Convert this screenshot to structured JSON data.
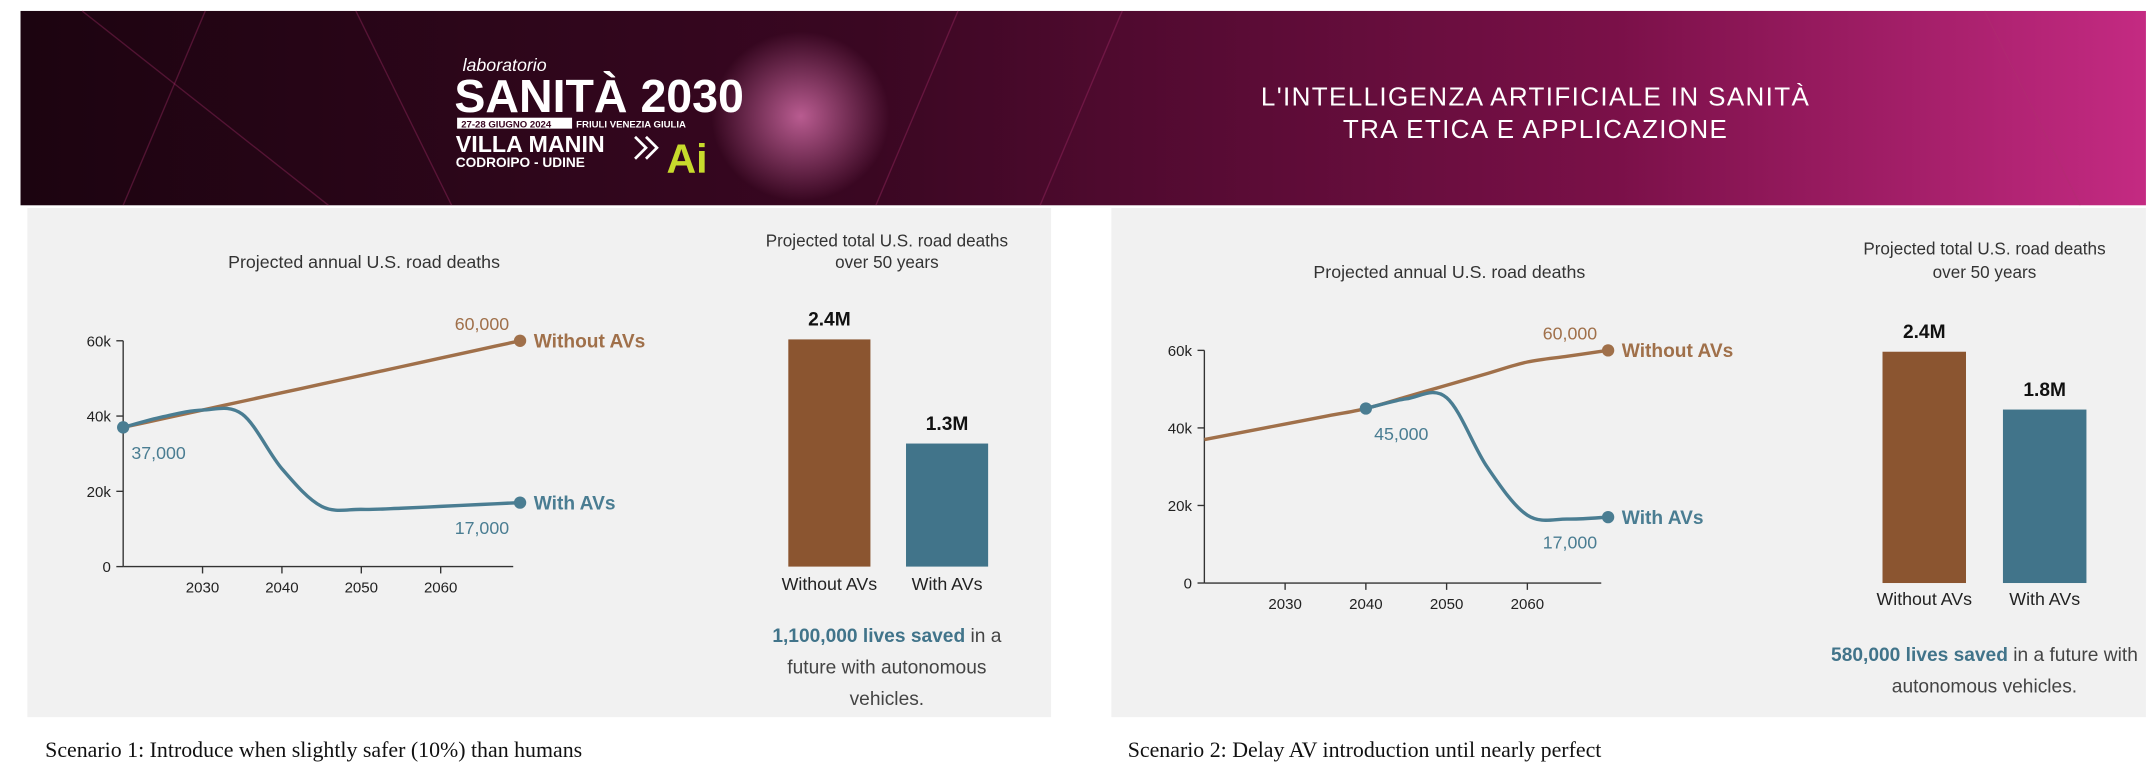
{
  "header": {
    "logo": {
      "kicker": "laboratorio",
      "name": "SANITÀ 2030",
      "dates": "27-28 GIUGNO 2024",
      "region": "FRIULI VENEZIA GIULIA",
      "venue": "VILLA MANIN",
      "place": "CODROIPO - UDINE",
      "badge": "Ai"
    },
    "title_lines": [
      "L'INTELLIGENZA ARTIFICIALE IN SANITÀ",
      "TRA ETICA E APPLICAZIONE"
    ]
  },
  "scenarios": [
    "Scenario 1: Introduce when slightly safer (10%) than humans",
    "Scenario 2: Delay AV introduction until nearly perfect"
  ],
  "chart_data": [
    {
      "type": "line",
      "title": "Projected annual U.S. road deaths",
      "x": [
        2020,
        2025,
        2030,
        2035,
        2040,
        2045,
        2050,
        2055,
        2060,
        2065,
        2070
      ],
      "series": [
        {
          "name": "Without AVs",
          "color": "#a0704a",
          "values": [
            37000,
            39300,
            41600,
            43900,
            46200,
            48500,
            50800,
            53100,
            55400,
            57700,
            60000
          ]
        },
        {
          "name": "With AVs",
          "color": "#4a7d92",
          "values": [
            37000,
            39800,
            41600,
            40500,
            26000,
            16000,
            15200,
            15500,
            16000,
            16500,
            17000
          ]
        }
      ],
      "annotations": [
        {
          "x": 2070,
          "y": 60000,
          "label": "60,000"
        },
        {
          "x": 2020,
          "y": 37000,
          "label": "37,000"
        },
        {
          "x": 2070,
          "y": 17000,
          "label": "17,000"
        }
      ],
      "xlim": [
        2020,
        2070
      ],
      "xticks": [
        2030,
        2040,
        2050,
        2060
      ],
      "ylim": [
        0,
        60000
      ],
      "yticks": [
        0,
        {
          "value": 20000,
          "label": "20k"
        },
        {
          "value": 40000,
          "label": "40k"
        },
        {
          "value": 60000,
          "label": "60k"
        }
      ]
    },
    {
      "type": "bar",
      "title": [
        "Projected total U.S. road deaths",
        "over 50 years"
      ],
      "categories": [
        "Without AVs",
        "With AVs"
      ],
      "values": [
        2400000,
        1300000
      ],
      "value_labels": [
        "2.4M",
        "1.3M"
      ],
      "colors": [
        "#8b5530",
        "#41748a"
      ],
      "note": {
        "highlight": "1,100,000 lives saved",
        "text": "in a future with autonomous vehicles."
      }
    },
    {
      "type": "line",
      "title": "Projected annual U.S. road deaths",
      "x": [
        2020,
        2025,
        2030,
        2035,
        2040,
        2045,
        2050,
        2055,
        2060,
        2065,
        2070
      ],
      "series": [
        {
          "name": "Without AVs",
          "color": "#a0704a",
          "values": [
            37000,
            39000,
            41000,
            43000,
            45000,
            48000,
            51000,
            54000,
            57000,
            58500,
            60000
          ]
        },
        {
          "name": "With AVs",
          "color": "#4a7d92",
          "values": [
            null,
            null,
            null,
            null,
            45000,
            47500,
            47800,
            30000,
            17500,
            16500,
            17000
          ]
        }
      ],
      "annotations": [
        {
          "x": 2070,
          "y": 60000,
          "label": "60,000"
        },
        {
          "x": 2040,
          "y": 45000,
          "label": "45,000"
        },
        {
          "x": 2070,
          "y": 17000,
          "label": "17,000"
        }
      ],
      "xlim": [
        2020,
        2070
      ],
      "xticks": [
        2030,
        2040,
        2050,
        2060
      ],
      "ylim": [
        0,
        60000
      ],
      "yticks": [
        0,
        {
          "value": 20000,
          "label": "20k"
        },
        {
          "value": 40000,
          "label": "40k"
        },
        {
          "value": 60000,
          "label": "60k"
        }
      ]
    },
    {
      "type": "bar",
      "title": [
        "Projected total U.S. road deaths",
        "over 50 years"
      ],
      "categories": [
        "Without AVs",
        "With AVs"
      ],
      "values": [
        2400000,
        1800000
      ],
      "value_labels": [
        "2.4M",
        "1.8M"
      ],
      "colors": [
        "#8b5530",
        "#41748a"
      ],
      "note": {
        "highlight": "580,000 lives saved",
        "text": "in a future with autonomous vehicles."
      }
    }
  ]
}
